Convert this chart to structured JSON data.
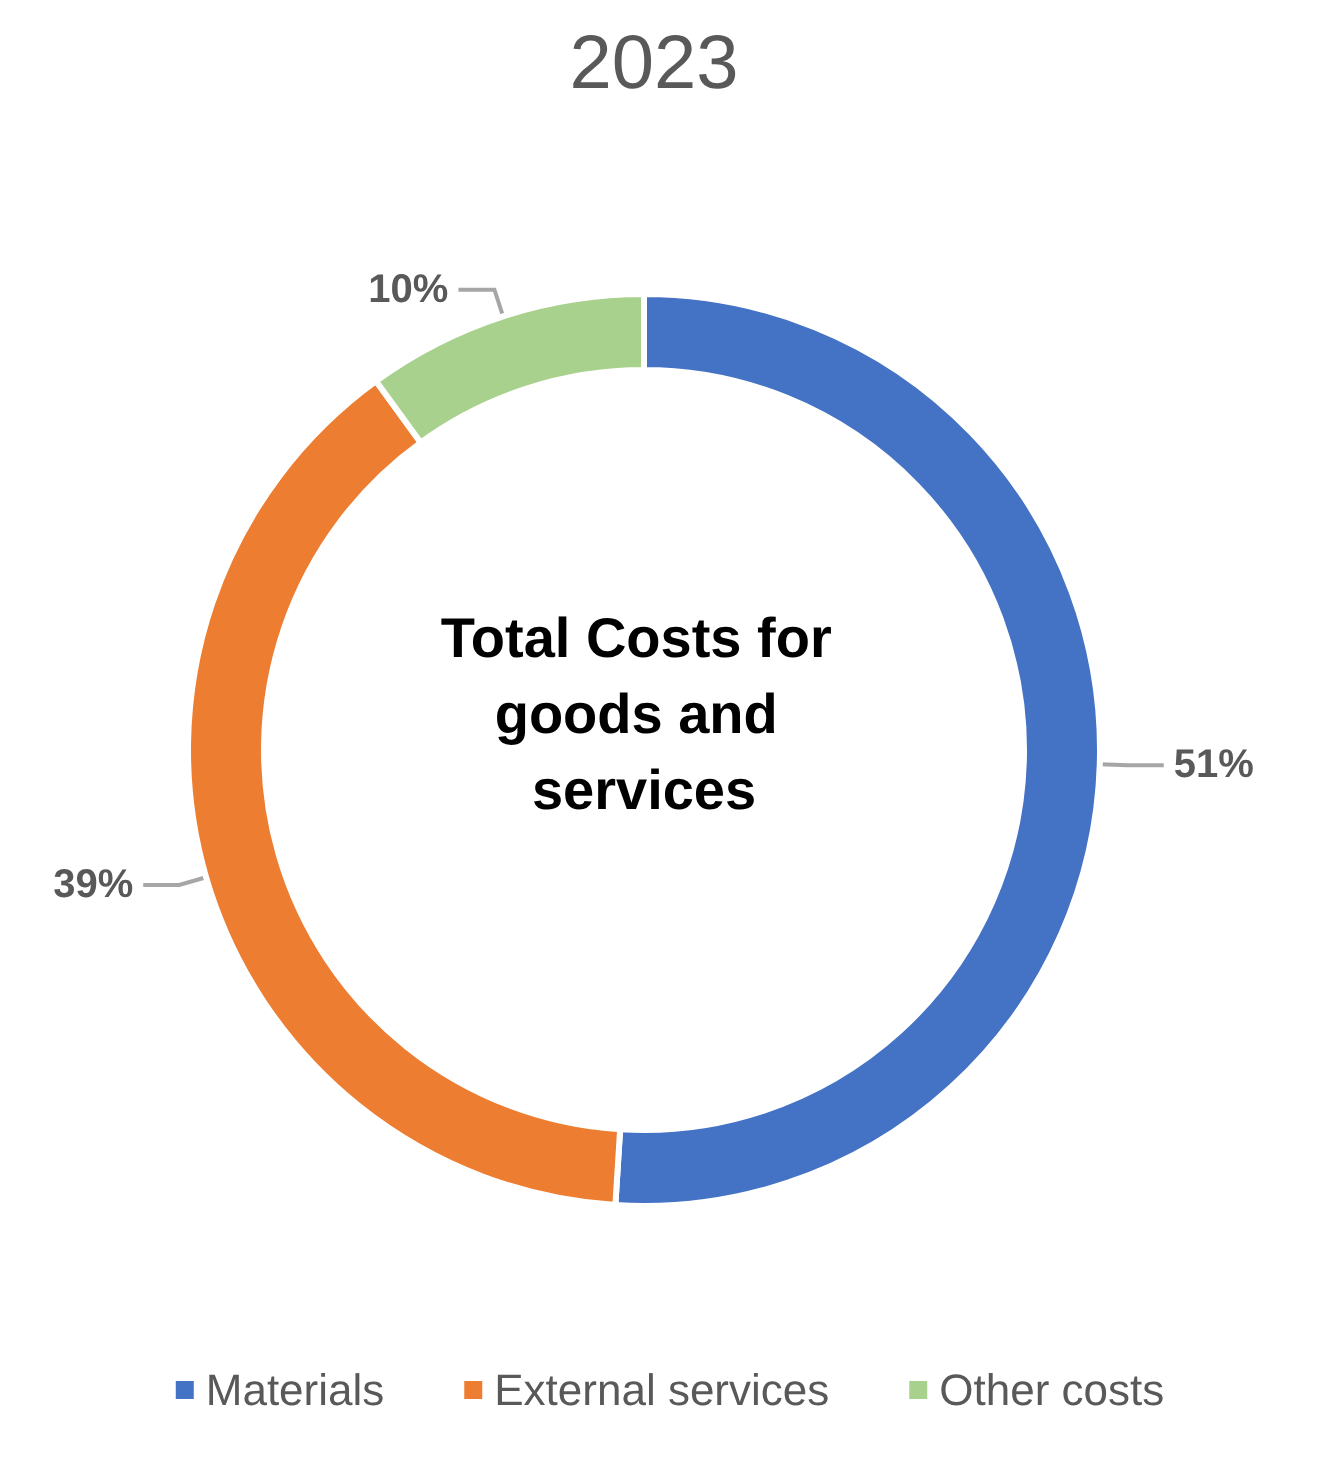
{
  "chart_data": {
    "type": "donut",
    "title": "2023",
    "categories": [
      "Materials",
      "External services",
      "Other costs"
    ],
    "values": [
      51,
      39,
      10
    ],
    "colors": [
      "#4472c4",
      "#ed7d31",
      "#a9d18e"
    ],
    "value_labels": [
      "51%",
      "39%",
      "10%"
    ],
    "annotations": [
      "Total Costs for goods and services"
    ],
    "legend": "bottom"
  }
}
